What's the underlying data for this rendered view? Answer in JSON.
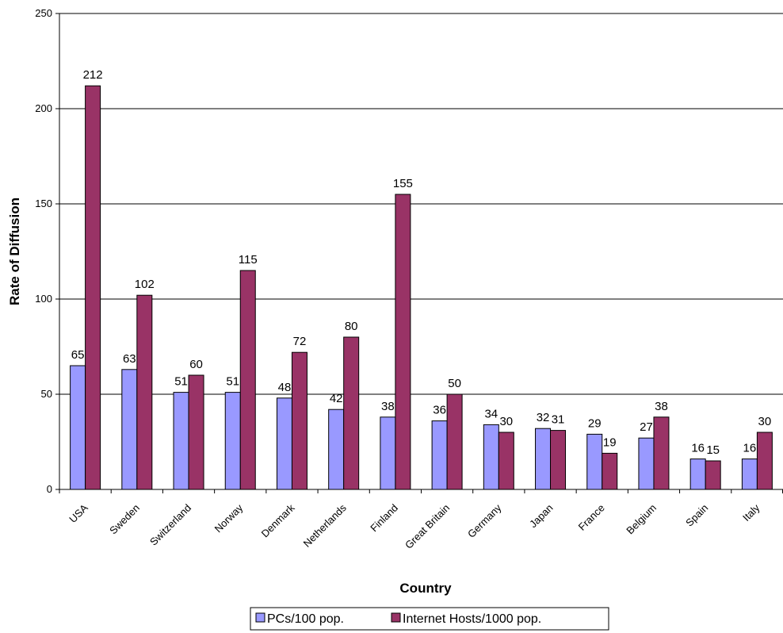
{
  "chart_data": {
    "type": "bar",
    "title": "",
    "xlabel": "Country",
    "ylabel": "Rate of Diffusion",
    "ylim": [
      0,
      250
    ],
    "yticks": [
      0,
      50,
      100,
      150,
      200,
      250
    ],
    "grid": "horizontal",
    "legend_position": "bottom",
    "categories": [
      "USA",
      "Sweden",
      "Switzerland",
      "Norway",
      "Denmark",
      "Netherlands",
      "Finland",
      "Great Britain",
      "Germany",
      "Japan",
      "France",
      "Belgium",
      "Spain",
      "Italy"
    ],
    "series": [
      {
        "name": "PCs/100 pop.",
        "color": "#9999FF",
        "values": [
          65,
          63,
          51,
          51,
          48,
          42,
          38,
          36,
          34,
          32,
          29,
          27,
          16,
          16
        ]
      },
      {
        "name": "Internet Hosts/1000 pop.",
        "color": "#993366",
        "values": [
          212,
          102,
          60,
          115,
          72,
          80,
          155,
          50,
          30,
          31,
          19,
          38,
          15,
          30
        ]
      }
    ]
  }
}
